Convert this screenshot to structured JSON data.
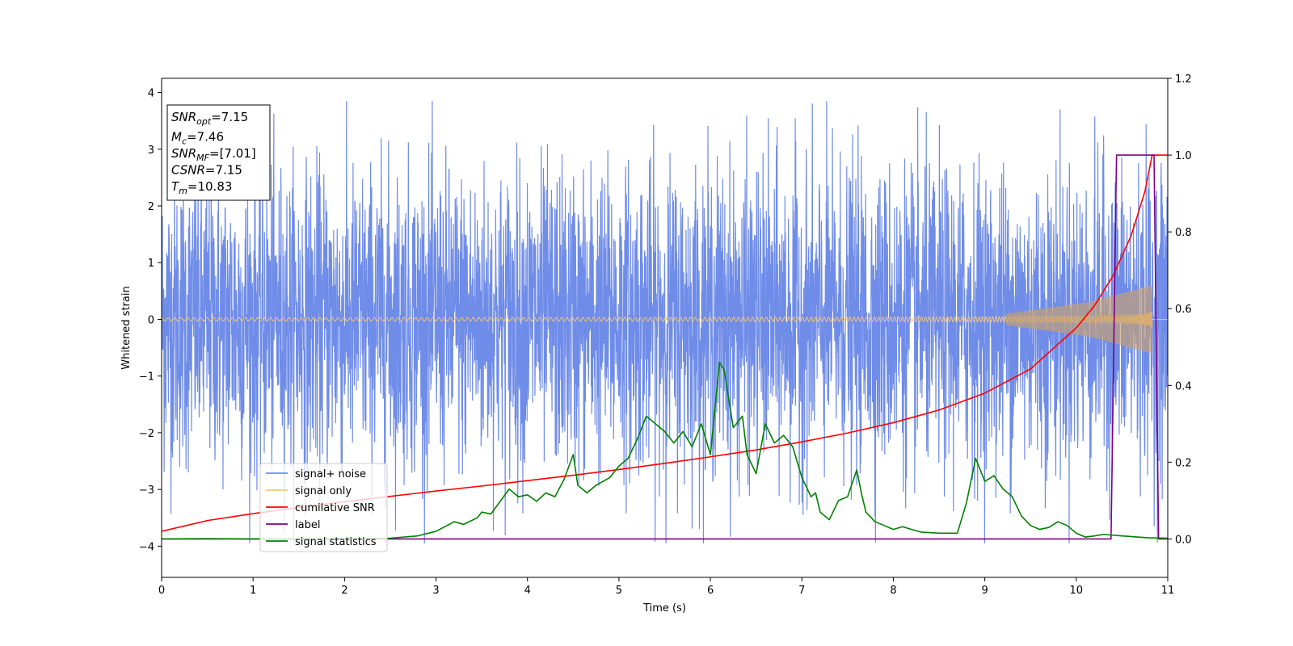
{
  "chart_data": {
    "type": "line",
    "xlabel": "Time (s)",
    "ylabel": "Whitened strain",
    "xlim": [
      0,
      11
    ],
    "ylim": [
      -4.55,
      4.25
    ],
    "y2lim": [
      -0.1,
      1.2
    ],
    "xticks": [
      "0",
      "1",
      "2",
      "3",
      "4",
      "5",
      "6",
      "7",
      "8",
      "9",
      "10",
      "11"
    ],
    "yticks": [
      "−4",
      "−3",
      "−2",
      "−1",
      "0",
      "1",
      "2",
      "3",
      "4"
    ],
    "y2ticks": [
      "0.0",
      "0.2",
      "0.4",
      "0.6",
      "0.8",
      "1.0",
      "1.2"
    ],
    "grid": false,
    "legend_position": "lower-left",
    "info_box": [
      {
        "base": "SNR",
        "sub": "opt",
        "rest": "=7.15"
      },
      {
        "base": "M",
        "sub": "c",
        "rest": "=7.46"
      },
      {
        "base": "SNR",
        "sub": "MF",
        "rest": "=[7.01]"
      },
      {
        "base": "CSNR",
        "sub": "",
        "rest": "=7.15"
      },
      {
        "base": "T",
        "sub": "m",
        "rest": "=10.83"
      }
    ],
    "series": [
      {
        "name": "signal+ noise",
        "axis": "left",
        "color": "#6f8ce8",
        "kind": "noise",
        "x_range": [
          0,
          11
        ],
        "typical_range": [
          -1.7,
          1.7
        ],
        "extreme_range": [
          -3.95,
          3.85
        ]
      },
      {
        "name": "signal only",
        "axis": "left",
        "color": "#f5c57a",
        "kind": "chirp",
        "x_range": [
          0,
          10.83
        ],
        "amplitude_start": 0.03,
        "amplitude_end": 0.6
      },
      {
        "name": "cumilative SNR",
        "axis": "right",
        "color": "#ff0000",
        "x": [
          0,
          0.5,
          1,
          1.5,
          2,
          2.5,
          3,
          3.5,
          4,
          4.5,
          5,
          5.5,
          6,
          6.5,
          7,
          7.5,
          8,
          8.5,
          9,
          9.5,
          10,
          10.2,
          10.4,
          10.6,
          10.75,
          10.83,
          11
        ],
        "values": [
          0.02,
          0.048,
          0.066,
          0.082,
          0.097,
          0.111,
          0.125,
          0.138,
          0.152,
          0.166,
          0.181,
          0.197,
          0.214,
          0.232,
          0.253,
          0.276,
          0.303,
          0.336,
          0.38,
          0.443,
          0.55,
          0.608,
          0.685,
          0.79,
          0.905,
          1.0,
          1.0
        ]
      },
      {
        "name": "label",
        "axis": "right",
        "color": "#800080",
        "x": [
          0,
          10.38,
          10.44,
          10.85,
          10.9,
          11
        ],
        "values": [
          0,
          0,
          1,
          1,
          0,
          0
        ]
      },
      {
        "name": "signal statistics",
        "axis": "right",
        "color": "#008000",
        "x": [
          0,
          0.5,
          1,
          1.5,
          2,
          2.5,
          2.8,
          3.0,
          3.2,
          3.3,
          3.45,
          3.5,
          3.6,
          3.8,
          3.9,
          4.0,
          4.1,
          4.2,
          4.3,
          4.4,
          4.5,
          4.55,
          4.65,
          4.75,
          4.9,
          5.0,
          5.1,
          5.2,
          5.3,
          5.4,
          5.5,
          5.6,
          5.7,
          5.8,
          5.9,
          6.0,
          6.1,
          6.15,
          6.25,
          6.35,
          6.4,
          6.5,
          6.6,
          6.7,
          6.8,
          6.9,
          7.0,
          7.1,
          7.15,
          7.2,
          7.3,
          7.4,
          7.5,
          7.6,
          7.65,
          7.7,
          7.8,
          7.9,
          8.0,
          8.1,
          8.2,
          8.3,
          8.5,
          8.7,
          8.8,
          8.9,
          9.0,
          9.1,
          9.2,
          9.3,
          9.4,
          9.5,
          9.6,
          9.7,
          9.8,
          9.9,
          10.0,
          10.1,
          10.2,
          10.3,
          10.5,
          10.8,
          11.0
        ],
        "values": [
          0.0,
          0.001,
          0.0,
          0.0,
          0.001,
          0.002,
          0.008,
          0.02,
          0.045,
          0.038,
          0.055,
          0.07,
          0.065,
          0.13,
          0.11,
          0.115,
          0.098,
          0.12,
          0.11,
          0.155,
          0.22,
          0.14,
          0.12,
          0.14,
          0.16,
          0.19,
          0.21,
          0.26,
          0.32,
          0.3,
          0.28,
          0.25,
          0.28,
          0.24,
          0.3,
          0.22,
          0.46,
          0.44,
          0.29,
          0.32,
          0.22,
          0.17,
          0.3,
          0.25,
          0.27,
          0.24,
          0.16,
          0.11,
          0.12,
          0.07,
          0.05,
          0.1,
          0.11,
          0.18,
          0.12,
          0.07,
          0.045,
          0.035,
          0.025,
          0.032,
          0.025,
          0.018,
          0.015,
          0.015,
          0.095,
          0.21,
          0.15,
          0.165,
          0.13,
          0.11,
          0.06,
          0.035,
          0.025,
          0.03,
          0.045,
          0.035,
          0.015,
          0.005,
          0.008,
          0.012,
          0.008,
          0.003,
          0.002
        ]
      }
    ]
  }
}
